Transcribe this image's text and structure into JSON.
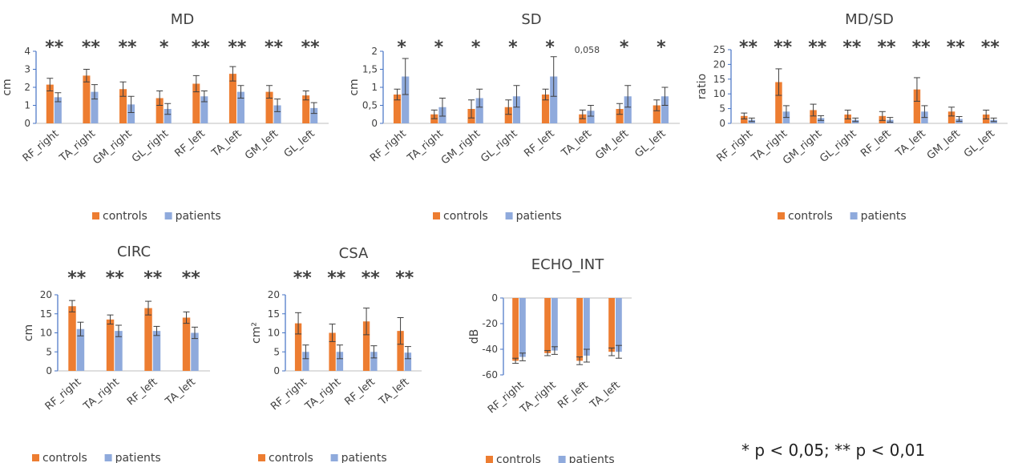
{
  "footnote": "* p < 0,05; ** p < 0,01",
  "colors": {
    "controls": "#ed7d31",
    "patients": "#8faadc",
    "axis": "#4472c4"
  },
  "chart_data": [
    {
      "type": "bar",
      "title": "MD",
      "ylabel": "cm",
      "ylim": [
        0,
        4
      ],
      "yticks": [
        "0",
        "1",
        "2",
        "3",
        "4"
      ],
      "ytick_values": [
        0,
        1,
        2,
        3,
        4
      ],
      "categories": [
        "RF_right",
        "TA_right",
        "GM_right",
        "GL_right",
        "RF_left",
        "TA_left",
        "GM_left",
        "GL_left"
      ],
      "series": [
        {
          "name": "controls",
          "values": [
            2.15,
            2.65,
            1.9,
            1.4,
            2.2,
            2.75,
            1.75,
            1.55
          ],
          "errors": [
            0.35,
            0.35,
            0.4,
            0.4,
            0.45,
            0.4,
            0.35,
            0.25
          ]
        },
        {
          "name": "patients",
          "values": [
            1.45,
            1.75,
            1.05,
            0.8,
            1.5,
            1.75,
            1.0,
            0.85
          ],
          "errors": [
            0.25,
            0.4,
            0.45,
            0.3,
            0.3,
            0.35,
            0.35,
            0.3
          ]
        }
      ],
      "significance": [
        "**",
        "**",
        "**",
        "*",
        "**",
        "**",
        "**",
        "**"
      ],
      "legend": [
        "controls",
        "patients"
      ]
    },
    {
      "type": "bar",
      "title": "SD",
      "ylabel": "cm",
      "ylim": [
        0,
        2
      ],
      "yticks": [
        "0",
        "0,5",
        "1",
        "1,5",
        "2"
      ],
      "ytick_values": [
        0,
        0.5,
        1,
        1.5,
        2
      ],
      "categories": [
        "RF_right",
        "TA_right",
        "GM_right",
        "GL_right",
        "RF_left",
        "TA_left",
        "GM_left",
        "GL_left"
      ],
      "series": [
        {
          "name": "controls",
          "values": [
            0.8,
            0.25,
            0.4,
            0.45,
            0.8,
            0.25,
            0.4,
            0.5
          ],
          "errors": [
            0.15,
            0.12,
            0.25,
            0.2,
            0.15,
            0.12,
            0.15,
            0.15
          ]
        },
        {
          "name": "patients",
          "values": [
            1.3,
            0.45,
            0.7,
            0.75,
            1.3,
            0.35,
            0.75,
            0.75
          ],
          "errors": [
            0.5,
            0.25,
            0.25,
            0.3,
            0.55,
            0.15,
            0.3,
            0.25
          ]
        }
      ],
      "significance": [
        "*",
        "*",
        "*",
        "*",
        "*",
        "0,058",
        "*",
        "*"
      ],
      "legend": [
        "controls",
        "patients"
      ]
    },
    {
      "type": "bar",
      "title": "MD/SD",
      "ylabel": "ratio",
      "ylim": [
        0,
        25
      ],
      "yticks": [
        "0",
        "5",
        "10",
        "15",
        "20",
        "25"
      ],
      "ytick_values": [
        0,
        5,
        10,
        15,
        20,
        25
      ],
      "categories": [
        "RF_right",
        "TA_right",
        "GM_right",
        "GL_right",
        "RF_left",
        "TA_left",
        "GM_left",
        "GL_left"
      ],
      "series": [
        {
          "name": "controls",
          "values": [
            2.5,
            14,
            4.5,
            3,
            2.5,
            11.5,
            4,
            3
          ],
          "errors": [
            1,
            4.5,
            2,
            1.5,
            1.5,
            4,
            1.5,
            1.5
          ]
        },
        {
          "name": "patients",
          "values": [
            1.2,
            4,
            1.8,
            1.2,
            1.2,
            4,
            1.5,
            1.2
          ],
          "errors": [
            0.6,
            2,
            0.8,
            0.6,
            0.8,
            2,
            0.8,
            0.6
          ]
        }
      ],
      "significance": [
        "**",
        "**",
        "**",
        "**",
        "**",
        "**",
        "**",
        "**"
      ],
      "legend": [
        "controls",
        "patients"
      ]
    },
    {
      "type": "bar",
      "title": "CIRC",
      "ylabel": "cm",
      "ylim": [
        0,
        20
      ],
      "yticks": [
        "0",
        "5",
        "10",
        "15",
        "20"
      ],
      "ytick_values": [
        0,
        5,
        10,
        15,
        20
      ],
      "categories": [
        "RF_right",
        "TA_right",
        "RF_left",
        "TA_left"
      ],
      "series": [
        {
          "name": "controls",
          "values": [
            17,
            13.5,
            16.5,
            14
          ],
          "errors": [
            1.5,
            1.2,
            1.8,
            1.5
          ]
        },
        {
          "name": "patients",
          "values": [
            11,
            10.5,
            10.5,
            10
          ],
          "errors": [
            1.8,
            1.5,
            1.2,
            1.5
          ]
        }
      ],
      "significance": [
        "**",
        "**",
        "**",
        "**"
      ],
      "legend": [
        "controls",
        "patients"
      ]
    },
    {
      "type": "bar",
      "title": "CSA",
      "ylabel": "cm²",
      "ylim": [
        0,
        20
      ],
      "yticks": [
        "0",
        "5",
        "10",
        "15",
        "20"
      ],
      "ytick_values": [
        0,
        5,
        10,
        15,
        20
      ],
      "categories": [
        "RF_right",
        "TA_right",
        "RF_left",
        "TA_left"
      ],
      "series": [
        {
          "name": "controls",
          "values": [
            12.5,
            10,
            13,
            10.5
          ],
          "errors": [
            2.8,
            2.3,
            3.5,
            3.5
          ]
        },
        {
          "name": "patients",
          "values": [
            5,
            5,
            5,
            4.8
          ],
          "errors": [
            1.8,
            1.8,
            1.6,
            1.6
          ]
        }
      ],
      "significance": [
        "**",
        "**",
        "**",
        "**"
      ],
      "legend": [
        "controls",
        "patients"
      ]
    },
    {
      "type": "bar",
      "title": "ECHO_INT",
      "ylabel": "dB",
      "ylim": [
        -60,
        0
      ],
      "yticks": [
        "-60",
        "-40",
        "-20",
        "0"
      ],
      "ytick_values": [
        -60,
        -40,
        -20,
        0
      ],
      "categories": [
        "RF_right",
        "TA_right",
        "RF_left",
        "TA_left"
      ],
      "series": [
        {
          "name": "controls",
          "values": [
            -49,
            -43,
            -49,
            -42
          ],
          "errors": [
            2,
            2,
            3,
            3
          ]
        },
        {
          "name": "patients",
          "values": [
            -46,
            -41,
            -45,
            -42
          ],
          "errors": [
            3,
            3,
            5,
            5
          ]
        }
      ],
      "significance": [
        "",
        "",
        "",
        ""
      ],
      "legend": [
        "controls",
        "patients"
      ]
    }
  ]
}
